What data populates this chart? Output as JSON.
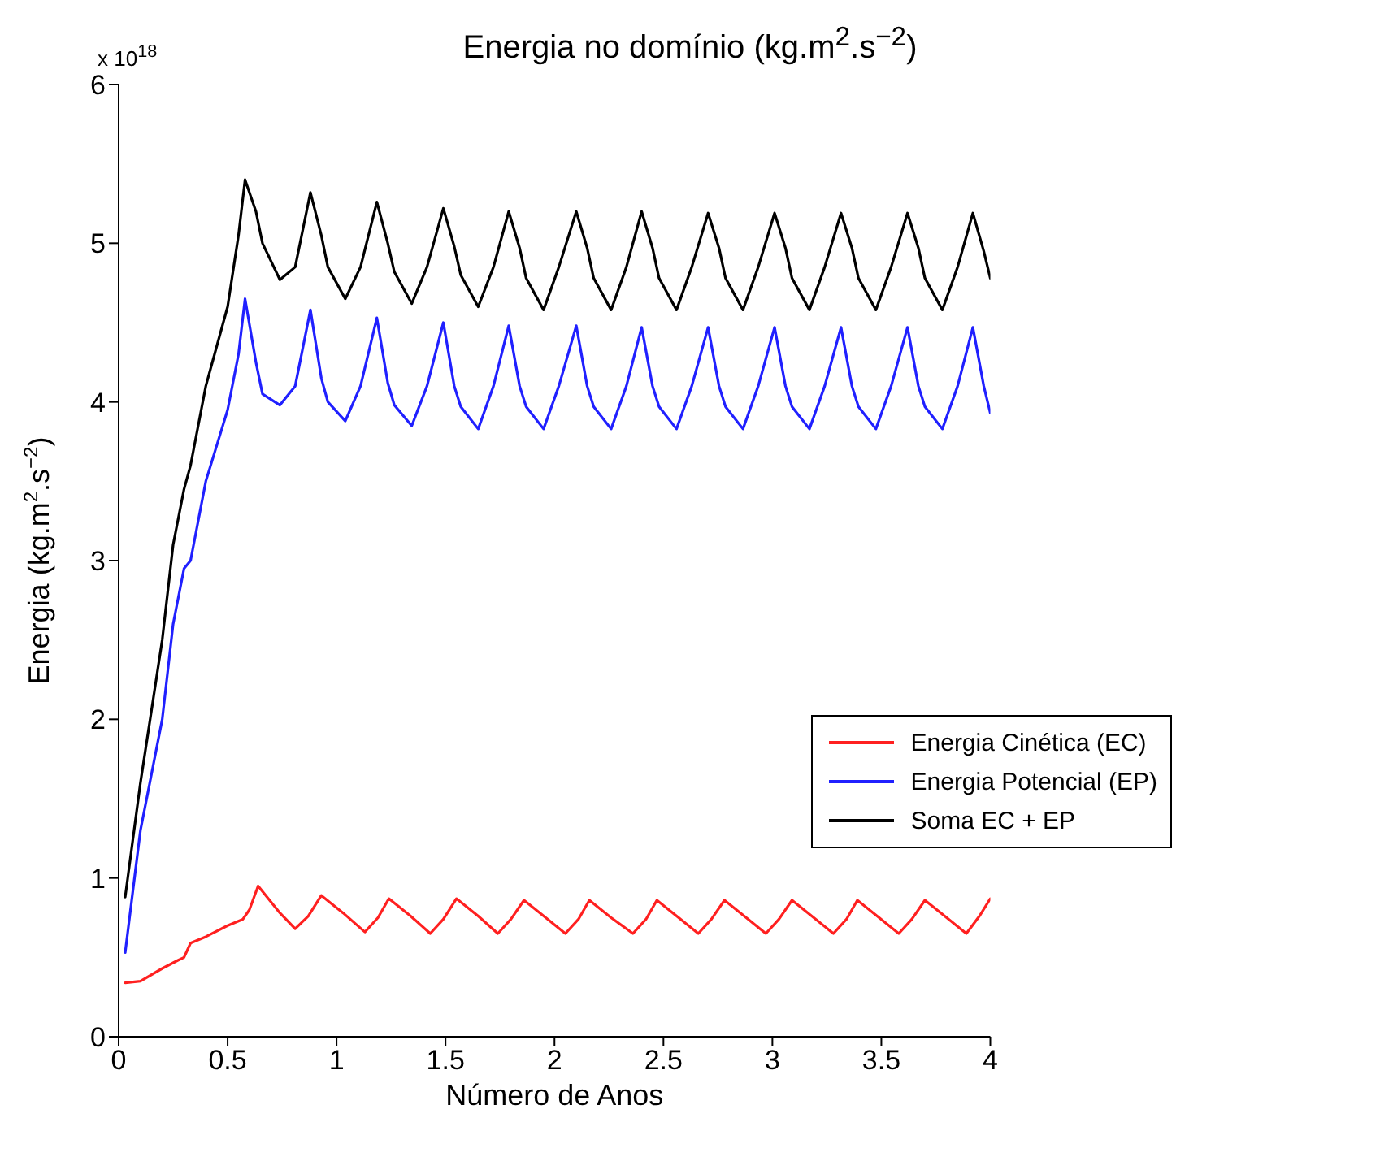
{
  "chart_data": {
    "type": "line",
    "title": "Energia no domínio (kg.m$^{2}$.s$^{−2}$)",
    "xlabel": "Número de Anos",
    "ylabel": "Energia (kg.m$^{2}$.s$^{−2}$)",
    "annotations": [
      "x 10$^{18}$"
    ],
    "xlim": [
      0,
      4
    ],
    "xticks": [
      0,
      0.5,
      1,
      1.5,
      2,
      2.5,
      3,
      3.5,
      4
    ],
    "ylim": [
      0,
      6
    ],
    "yticks": [
      0,
      1,
      2,
      3,
      4,
      5,
      6
    ],
    "grid": false,
    "legend": "right",
    "marker": "none",
    "line_style": "solid",
    "series": [
      {
        "name": "Energia Cinética (EC)",
        "color": "#ff2020",
        "x": [
          0.03,
          0.1,
          0.2,
          0.27,
          0.3,
          0.33,
          0.4,
          0.5,
          0.57,
          0.6,
          0.64,
          0.74,
          0.81,
          0.87,
          0.93,
          1.03,
          1.13,
          1.19,
          1.24,
          1.34,
          1.43,
          1.49,
          1.55,
          1.65,
          1.74,
          1.8,
          1.86,
          1.96,
          2.05,
          2.11,
          2.16,
          2.26,
          2.36,
          2.42,
          2.47,
          2.57,
          2.66,
          2.72,
          2.78,
          2.88,
          2.97,
          3.03,
          3.09,
          3.19,
          3.28,
          3.34,
          3.39,
          3.49,
          3.58,
          3.64,
          3.7,
          3.8,
          3.89,
          3.95,
          4.0
        ],
        "values": [
          0.34,
          0.35,
          0.43,
          0.48,
          0.5,
          0.59,
          0.63,
          0.7,
          0.74,
          0.8,
          0.95,
          0.78,
          0.68,
          0.76,
          0.89,
          0.78,
          0.66,
          0.75,
          0.87,
          0.76,
          0.65,
          0.74,
          0.87,
          0.76,
          0.65,
          0.74,
          0.86,
          0.75,
          0.65,
          0.74,
          0.86,
          0.75,
          0.65,
          0.74,
          0.86,
          0.75,
          0.65,
          0.74,
          0.86,
          0.75,
          0.65,
          0.74,
          0.86,
          0.75,
          0.65,
          0.74,
          0.86,
          0.75,
          0.65,
          0.74,
          0.86,
          0.75,
          0.65,
          0.76,
          0.87
        ]
      },
      {
        "name": "Energia Potencial (EP)",
        "color": "#2020ff",
        "x": [
          0.03,
          0.1,
          0.2,
          0.25,
          0.3,
          0.33,
          0.4,
          0.5,
          0.55,
          0.58,
          0.63,
          0.66,
          0.74,
          0.81,
          0.88,
          0.93,
          0.96,
          1.04,
          1.11,
          1.185,
          1.235,
          1.265,
          1.345,
          1.415,
          1.49,
          1.54,
          1.57,
          1.65,
          1.72,
          1.79,
          1.84,
          1.87,
          1.95,
          2.02,
          2.1,
          2.15,
          2.18,
          2.26,
          2.33,
          2.4,
          2.45,
          2.48,
          2.56,
          2.63,
          2.705,
          2.755,
          2.785,
          2.865,
          2.935,
          3.01,
          3.06,
          3.09,
          3.17,
          3.24,
          3.315,
          3.365,
          3.395,
          3.475,
          3.545,
          3.62,
          3.67,
          3.7,
          3.78,
          3.85,
          3.92,
          3.97,
          4.0
        ],
        "values": [
          0.53,
          1.3,
          2.0,
          2.6,
          2.95,
          3.0,
          3.5,
          3.95,
          4.3,
          4.65,
          4.25,
          4.05,
          3.98,
          4.1,
          4.58,
          4.15,
          4.0,
          3.88,
          4.1,
          4.53,
          4.12,
          3.98,
          3.85,
          4.1,
          4.5,
          4.1,
          3.97,
          3.83,
          4.1,
          4.48,
          4.1,
          3.97,
          3.83,
          4.1,
          4.48,
          4.1,
          3.97,
          3.83,
          4.1,
          4.47,
          4.1,
          3.97,
          3.83,
          4.1,
          4.47,
          4.1,
          3.97,
          3.83,
          4.1,
          4.47,
          4.1,
          3.97,
          3.83,
          4.1,
          4.47,
          4.1,
          3.97,
          3.83,
          4.1,
          4.47,
          4.1,
          3.97,
          3.83,
          4.1,
          4.47,
          4.1,
          3.93
        ]
      },
      {
        "name": "Soma EC + EP",
        "color": "#000000",
        "x": [
          0.03,
          0.1,
          0.2,
          0.25,
          0.3,
          0.33,
          0.4,
          0.5,
          0.55,
          0.58,
          0.63,
          0.66,
          0.74,
          0.81,
          0.88,
          0.93,
          0.96,
          1.04,
          1.11,
          1.185,
          1.235,
          1.265,
          1.345,
          1.415,
          1.49,
          1.54,
          1.57,
          1.65,
          1.72,
          1.79,
          1.84,
          1.87,
          1.95,
          2.02,
          2.1,
          2.15,
          2.18,
          2.26,
          2.33,
          2.4,
          2.45,
          2.48,
          2.56,
          2.63,
          2.705,
          2.755,
          2.785,
          2.865,
          2.935,
          3.01,
          3.06,
          3.09,
          3.17,
          3.24,
          3.315,
          3.365,
          3.395,
          3.475,
          3.545,
          3.62,
          3.67,
          3.7,
          3.78,
          3.85,
          3.92,
          3.97,
          4.0
        ],
        "values": [
          0.88,
          1.6,
          2.5,
          3.1,
          3.45,
          3.6,
          4.1,
          4.6,
          5.05,
          5.4,
          5.2,
          5.0,
          4.77,
          4.85,
          5.32,
          5.05,
          4.85,
          4.65,
          4.85,
          5.26,
          5.0,
          4.82,
          4.62,
          4.85,
          5.22,
          4.98,
          4.8,
          4.6,
          4.85,
          5.2,
          4.97,
          4.78,
          4.58,
          4.85,
          5.2,
          4.97,
          4.78,
          4.58,
          4.85,
          5.2,
          4.97,
          4.78,
          4.58,
          4.85,
          5.19,
          4.97,
          4.78,
          4.58,
          4.85,
          5.19,
          4.97,
          4.78,
          4.58,
          4.85,
          5.19,
          4.97,
          4.78,
          4.58,
          4.85,
          5.19,
          4.97,
          4.78,
          4.58,
          4.85,
          5.19,
          4.95,
          4.78
        ]
      }
    ]
  }
}
